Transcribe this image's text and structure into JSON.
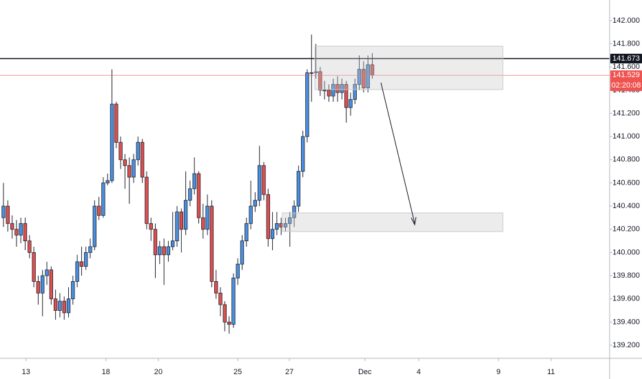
{
  "chart_data": {
    "type": "candlestick",
    "x": [
      0,
      1,
      2,
      3,
      4,
      5,
      6,
      7,
      8,
      9,
      10,
      11,
      12,
      13,
      14,
      15,
      16,
      17,
      18,
      19,
      20,
      21,
      22,
      23,
      24,
      25,
      26,
      27,
      28,
      29,
      30,
      31,
      32,
      33,
      34,
      35,
      36,
      37,
      38,
      39,
      40,
      41,
      42,
      43,
      44,
      45,
      46,
      47,
      48,
      49,
      50,
      51,
      52,
      53,
      54,
      55,
      56,
      57,
      58,
      59,
      60,
      61,
      62,
      63,
      64,
      65,
      66,
      67,
      68,
      69,
      70,
      71,
      72,
      73,
      74,
      75,
      76,
      77,
      78,
      79,
      80,
      81,
      82,
      83,
      84,
      85
    ],
    "open": [
      140.3,
      140.4,
      140.25,
      140.2,
      140.15,
      140.25,
      140.1,
      140.0,
      139.75,
      139.65,
      139.8,
      139.85,
      139.6,
      139.5,
      139.58,
      139.48,
      139.6,
      139.75,
      139.92,
      139.88,
      140.0,
      140.05,
      140.4,
      140.32,
      140.6,
      140.62,
      141.28,
      140.95,
      140.8,
      140.75,
      140.65,
      140.8,
      140.95,
      140.65,
      140.25,
      140.2,
      139.98,
      140.05,
      139.98,
      140.05,
      140.1,
      140.35,
      140.2,
      140.45,
      140.55,
      140.68,
      140.3,
      140.2,
      140.4,
      139.75,
      139.65,
      139.55,
      139.4,
      139.38,
      139.78,
      139.9,
      140.1,
      140.25,
      140.4,
      140.45,
      140.75,
      140.5,
      140.12,
      140.2,
      140.25,
      140.22,
      140.25,
      140.3,
      140.4,
      140.7,
      141.0,
      141.55,
      141.55,
      141.56,
      141.4,
      141.4,
      141.35,
      141.45,
      141.38,
      141.45,
      141.25,
      141.32,
      141.45,
      141.58,
      141.42,
      141.62
    ],
    "high": [
      140.6,
      140.45,
      140.32,
      140.28,
      140.3,
      140.3,
      140.15,
      140.05,
      139.8,
      139.85,
      139.92,
      139.88,
      139.68,
      139.65,
      139.62,
      139.7,
      139.8,
      139.98,
      140.05,
      140.05,
      140.12,
      140.45,
      140.48,
      140.65,
      140.68,
      141.58,
      141.3,
      141.0,
      140.85,
      140.82,
      140.85,
      141.0,
      140.98,
      140.7,
      140.3,
      140.25,
      140.1,
      140.12,
      140.1,
      140.35,
      140.4,
      140.38,
      140.7,
      140.62,
      140.82,
      140.7,
      140.42,
      140.5,
      140.45,
      139.85,
      139.7,
      139.58,
      139.45,
      139.82,
      139.95,
      140.15,
      140.3,
      140.62,
      140.52,
      140.92,
      140.78,
      140.55,
      140.35,
      140.35,
      140.3,
      140.3,
      140.35,
      140.45,
      140.75,
      141.05,
      141.58,
      141.88,
      141.8,
      141.6,
      141.48,
      141.45,
      141.5,
      141.52,
      141.5,
      141.48,
      141.38,
      141.5,
      141.7,
      141.65,
      141.7,
      141.72
    ],
    "low": [
      140.22,
      140.18,
      140.12,
      140.05,
      140.08,
      140.02,
      139.95,
      139.7,
      139.55,
      139.45,
      139.72,
      139.55,
      139.42,
      139.44,
      139.42,
      139.44,
      139.55,
      139.7,
      139.8,
      139.85,
      139.95,
      140.02,
      140.28,
      140.3,
      140.58,
      140.6,
      140.9,
      140.72,
      140.55,
      140.42,
      140.6,
      140.75,
      140.6,
      140.2,
      140.1,
      139.78,
      139.9,
      139.72,
      139.92,
      140.02,
      140.05,
      140.0,
      140.15,
      140.4,
      140.5,
      140.25,
      140.12,
      140.15,
      139.7,
      139.6,
      139.45,
      139.32,
      139.3,
      139.35,
      139.72,
      139.85,
      140.05,
      140.2,
      140.35,
      140.4,
      140.45,
      140.05,
      140.02,
      140.15,
      140.15,
      140.18,
      140.05,
      140.22,
      140.35,
      140.65,
      140.95,
      141.3,
      141.5,
      141.35,
      141.32,
      141.3,
      141.3,
      141.3,
      141.32,
      141.12,
      141.18,
      141.28,
      141.4,
      141.38,
      141.38,
      141.5
    ],
    "close": [
      140.4,
      140.25,
      140.2,
      140.15,
      140.25,
      140.1,
      140.0,
      139.75,
      139.65,
      139.8,
      139.85,
      139.6,
      139.5,
      139.58,
      139.48,
      139.6,
      139.75,
      139.92,
      139.88,
      140.0,
      140.05,
      140.4,
      140.32,
      140.6,
      140.62,
      141.28,
      140.95,
      140.8,
      140.75,
      140.65,
      140.8,
      140.95,
      140.65,
      140.25,
      140.2,
      139.98,
      140.05,
      139.98,
      140.05,
      140.1,
      140.35,
      140.2,
      140.45,
      140.55,
      140.68,
      140.3,
      140.2,
      140.4,
      139.75,
      139.65,
      139.55,
      139.4,
      139.38,
      139.78,
      139.9,
      140.1,
      140.25,
      140.4,
      140.45,
      140.75,
      140.5,
      140.12,
      140.2,
      140.25,
      140.22,
      140.25,
      140.3,
      140.4,
      140.7,
      141.0,
      141.55,
      141.55,
      141.56,
      141.4,
      141.4,
      141.35,
      141.45,
      141.38,
      141.45,
      141.25,
      141.32,
      141.45,
      141.58,
      141.42,
      141.62,
      141.53
    ],
    "up_color": "#4a8fe0",
    "down_color": "#e04f4f",
    "xlim": [
      -0.8,
      139.7
    ],
    "xticks": [
      {
        "value": 5.2,
        "label": "13"
      },
      {
        "value": 23.6,
        "label": "18"
      },
      {
        "value": 35.7,
        "label": "20"
      },
      {
        "value": 54,
        "label": "25"
      },
      {
        "value": 65.9,
        "label": "27"
      },
      {
        "value": 83.3,
        "label": "Dec"
      },
      {
        "value": 95.7,
        "label": "4"
      },
      {
        "value": 114.1,
        "label": "9"
      },
      {
        "value": 126.2,
        "label": "11"
      }
    ],
    "ylim": [
      139.087,
      142.178
    ],
    "yticks": [
      {
        "value": 139.2,
        "label": "139.200"
      },
      {
        "value": 139.4,
        "label": "139.400"
      },
      {
        "value": 139.6,
        "label": "139.600"
      },
      {
        "value": 139.8,
        "label": "139.800"
      },
      {
        "value": 140.0,
        "label": "140.000"
      },
      {
        "value": 140.2,
        "label": "140.200"
      },
      {
        "value": 140.4,
        "label": "140.400"
      },
      {
        "value": 140.6,
        "label": "140.600"
      },
      {
        "value": 140.8,
        "label": "140.800"
      },
      {
        "value": 141.0,
        "label": "141.000"
      },
      {
        "value": 141.2,
        "label": "141.200"
      },
      {
        "value": 141.4,
        "label": "141.400"
      },
      {
        "value": 141.6,
        "label": "141.600"
      },
      {
        "value": 141.8,
        "label": "141.800"
      },
      {
        "value": 142.0,
        "label": "142.000"
      }
    ],
    "lines": [
      {
        "value": 141.673,
        "label": "141.673",
        "color": "#131722"
      },
      {
        "value": 141.529,
        "label": "141.529",
        "color": "#ef5350"
      }
    ],
    "countdown": "02:20:08"
  }
}
